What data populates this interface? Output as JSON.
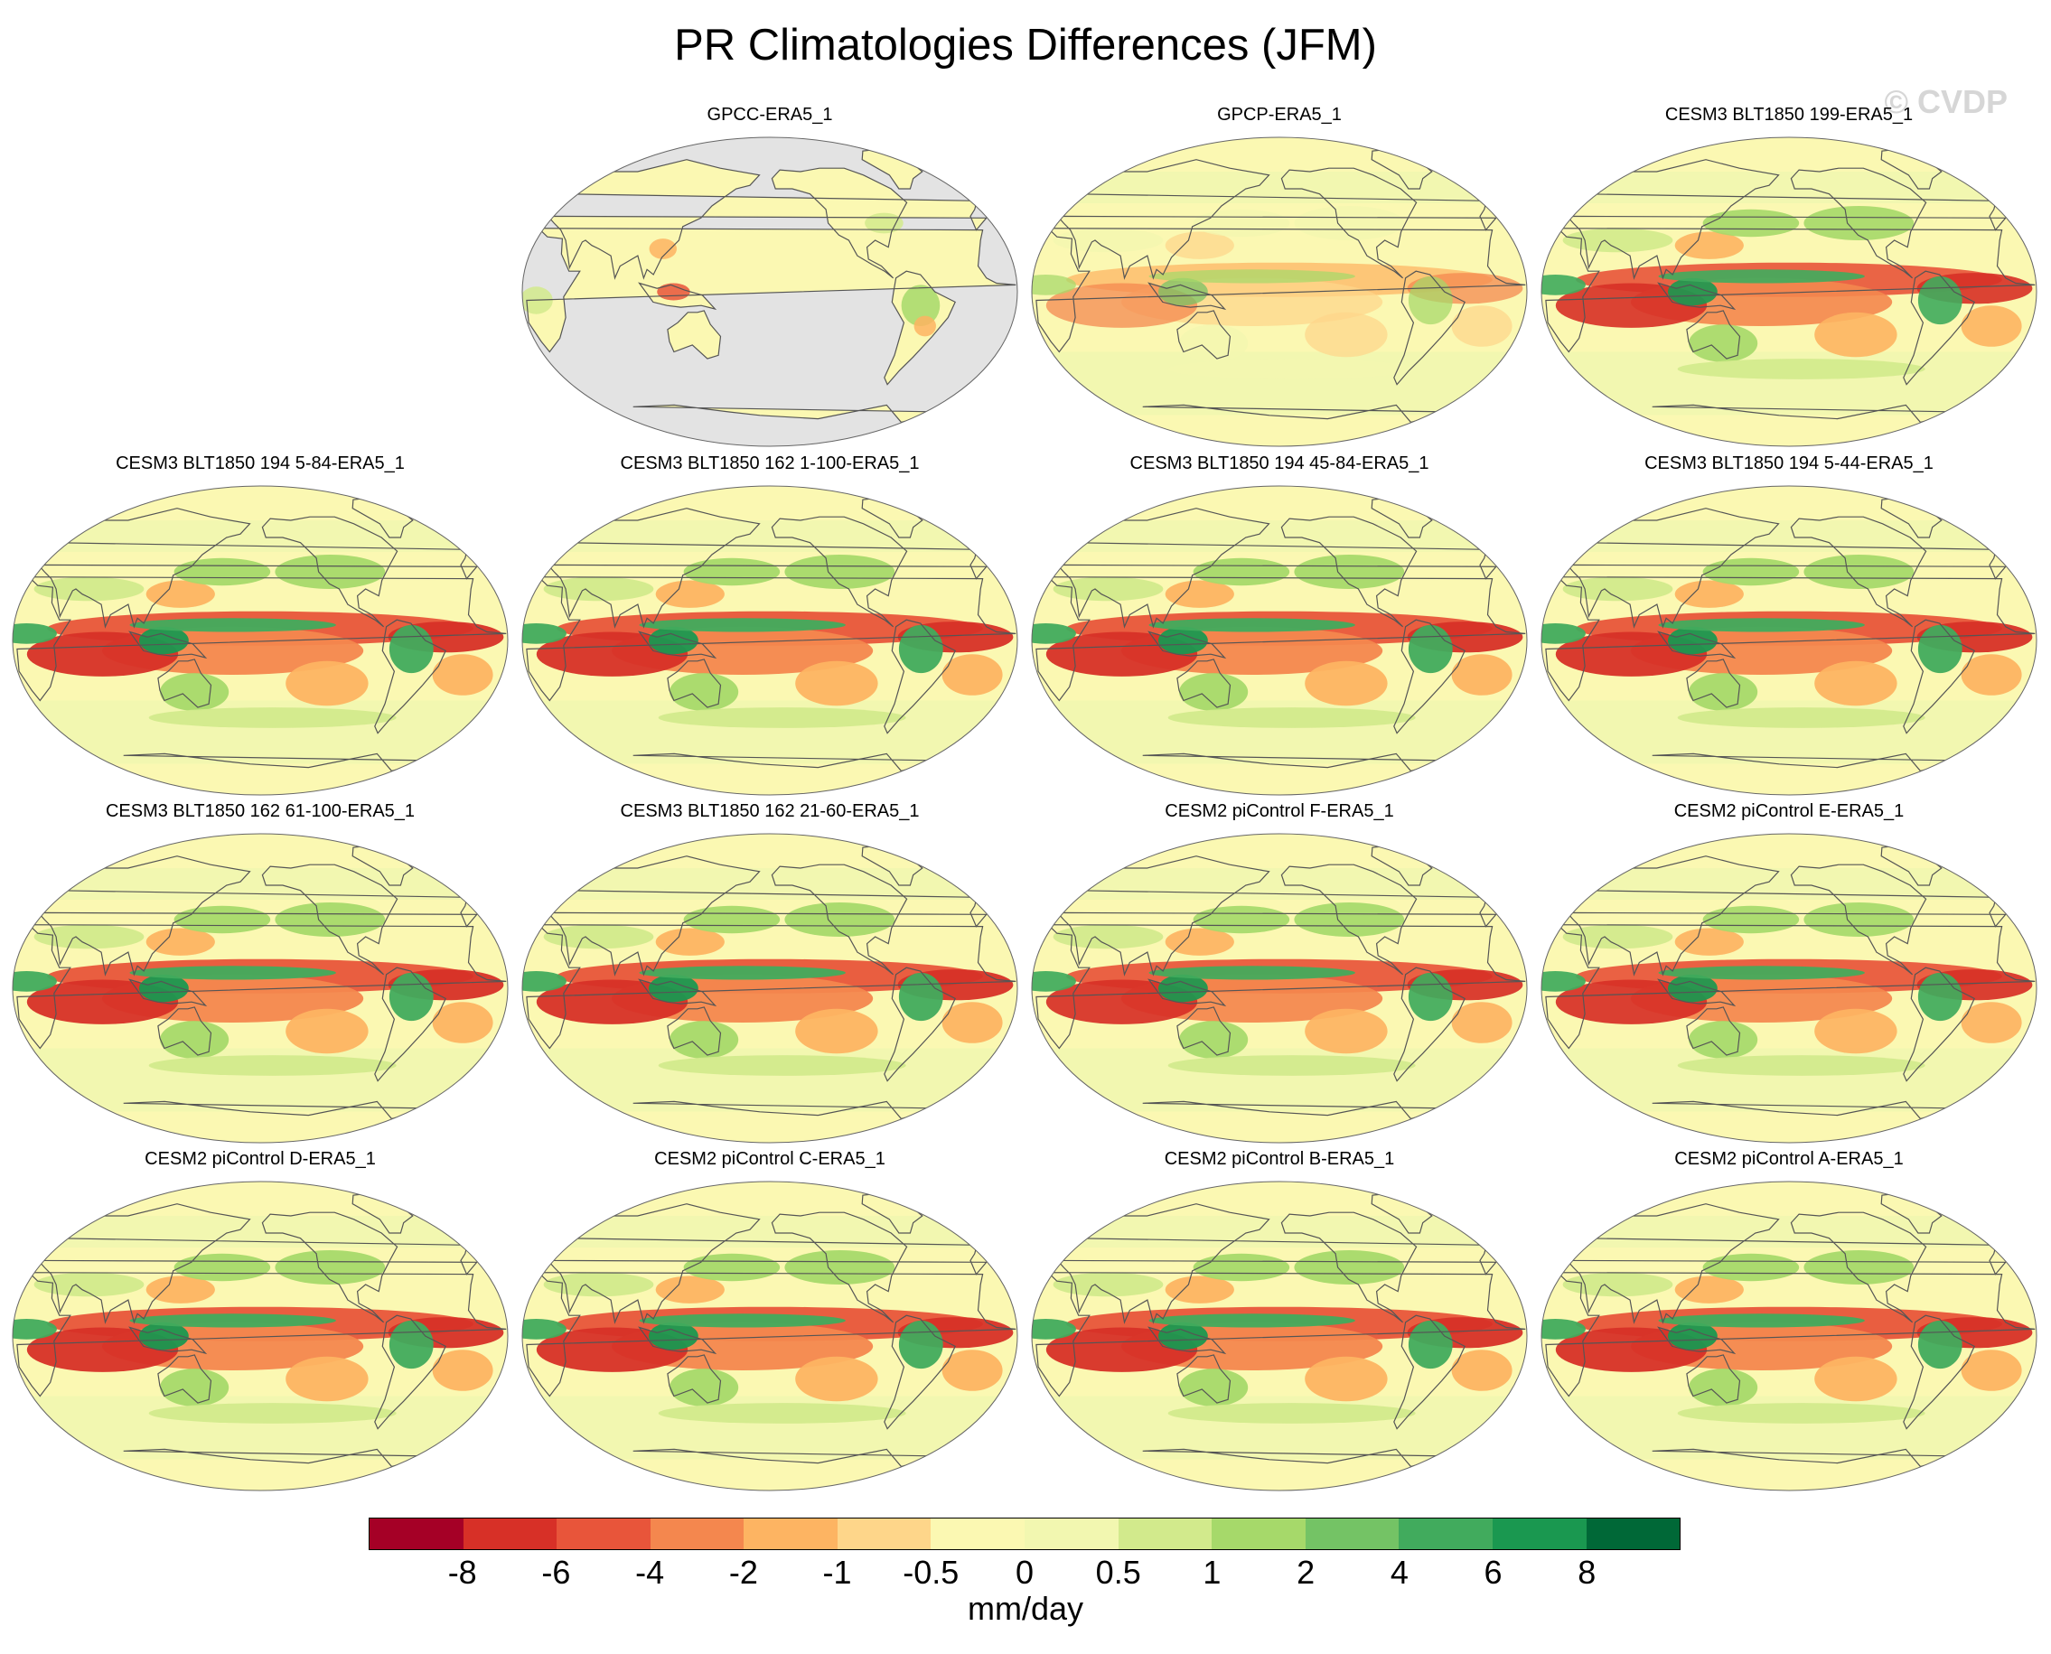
{
  "title": "PR Climatologies Differences (JFM)",
  "watermark": "© CVDP",
  "colors": {
    "background": "#ffffff",
    "ocean_masked": "#e3e3e3",
    "coastline": "#555555",
    "neutral": "#fbf8b2"
  },
  "panels": [
    {
      "label": "GPCC-ERA5_1",
      "land_only": true
    },
    {
      "label": "GPCP-ERA5_1",
      "land_only": false,
      "strength": 0.45
    },
    {
      "label": "CESM3 BLT1850 199-ERA5_1",
      "land_only": false,
      "strength": 0.9
    },
    {
      "label": "CESM3 BLT1850 194 5-84-ERA5_1",
      "land_only": false,
      "strength": 1.0
    },
    {
      "label": "CESM3 BLT1850 162 1-100-ERA5_1",
      "land_only": false,
      "strength": 1.0
    },
    {
      "label": "CESM3 BLT1850 194 45-84-ERA5_1",
      "land_only": false,
      "strength": 1.0
    },
    {
      "label": "CESM3 BLT1850 194 5-44-ERA5_1",
      "land_only": false,
      "strength": 1.0
    },
    {
      "label": "CESM3 BLT1850 162 61-100-ERA5_1",
      "land_only": false,
      "strength": 1.0
    },
    {
      "label": "CESM3 BLT1850 162 21-60-ERA5_1",
      "land_only": false,
      "strength": 1.0
    },
    {
      "label": "CESM2 piControl F-ERA5_1",
      "land_only": false,
      "strength": 0.95
    },
    {
      "label": "CESM2 piControl E-ERA5_1",
      "land_only": false,
      "strength": 0.95
    },
    {
      "label": "CESM2 piControl D-ERA5_1",
      "land_only": false,
      "strength": 1.0
    },
    {
      "label": "CESM2 piControl C-ERA5_1",
      "land_only": false,
      "strength": 1.0
    },
    {
      "label": "CESM2 piControl B-ERA5_1",
      "land_only": false,
      "strength": 1.0
    },
    {
      "label": "CESM2 piControl A-ERA5_1",
      "land_only": false,
      "strength": 1.0
    }
  ],
  "colorbar": {
    "colors": [
      "#a50026",
      "#d73027",
      "#e8553a",
      "#f4874e",
      "#fdb462",
      "#fed68a",
      "#fbf8b2",
      "#f2f7b0",
      "#d2ea8c",
      "#a6d96a",
      "#74c365",
      "#41ab5d",
      "#1a9850",
      "#006837"
    ],
    "labels": [
      "-8",
      "-6",
      "-4",
      "-2",
      "-1",
      "-0.5",
      "0",
      "0.5",
      "1",
      "2",
      "4",
      "6",
      "8"
    ],
    "units": "mm/day"
  }
}
